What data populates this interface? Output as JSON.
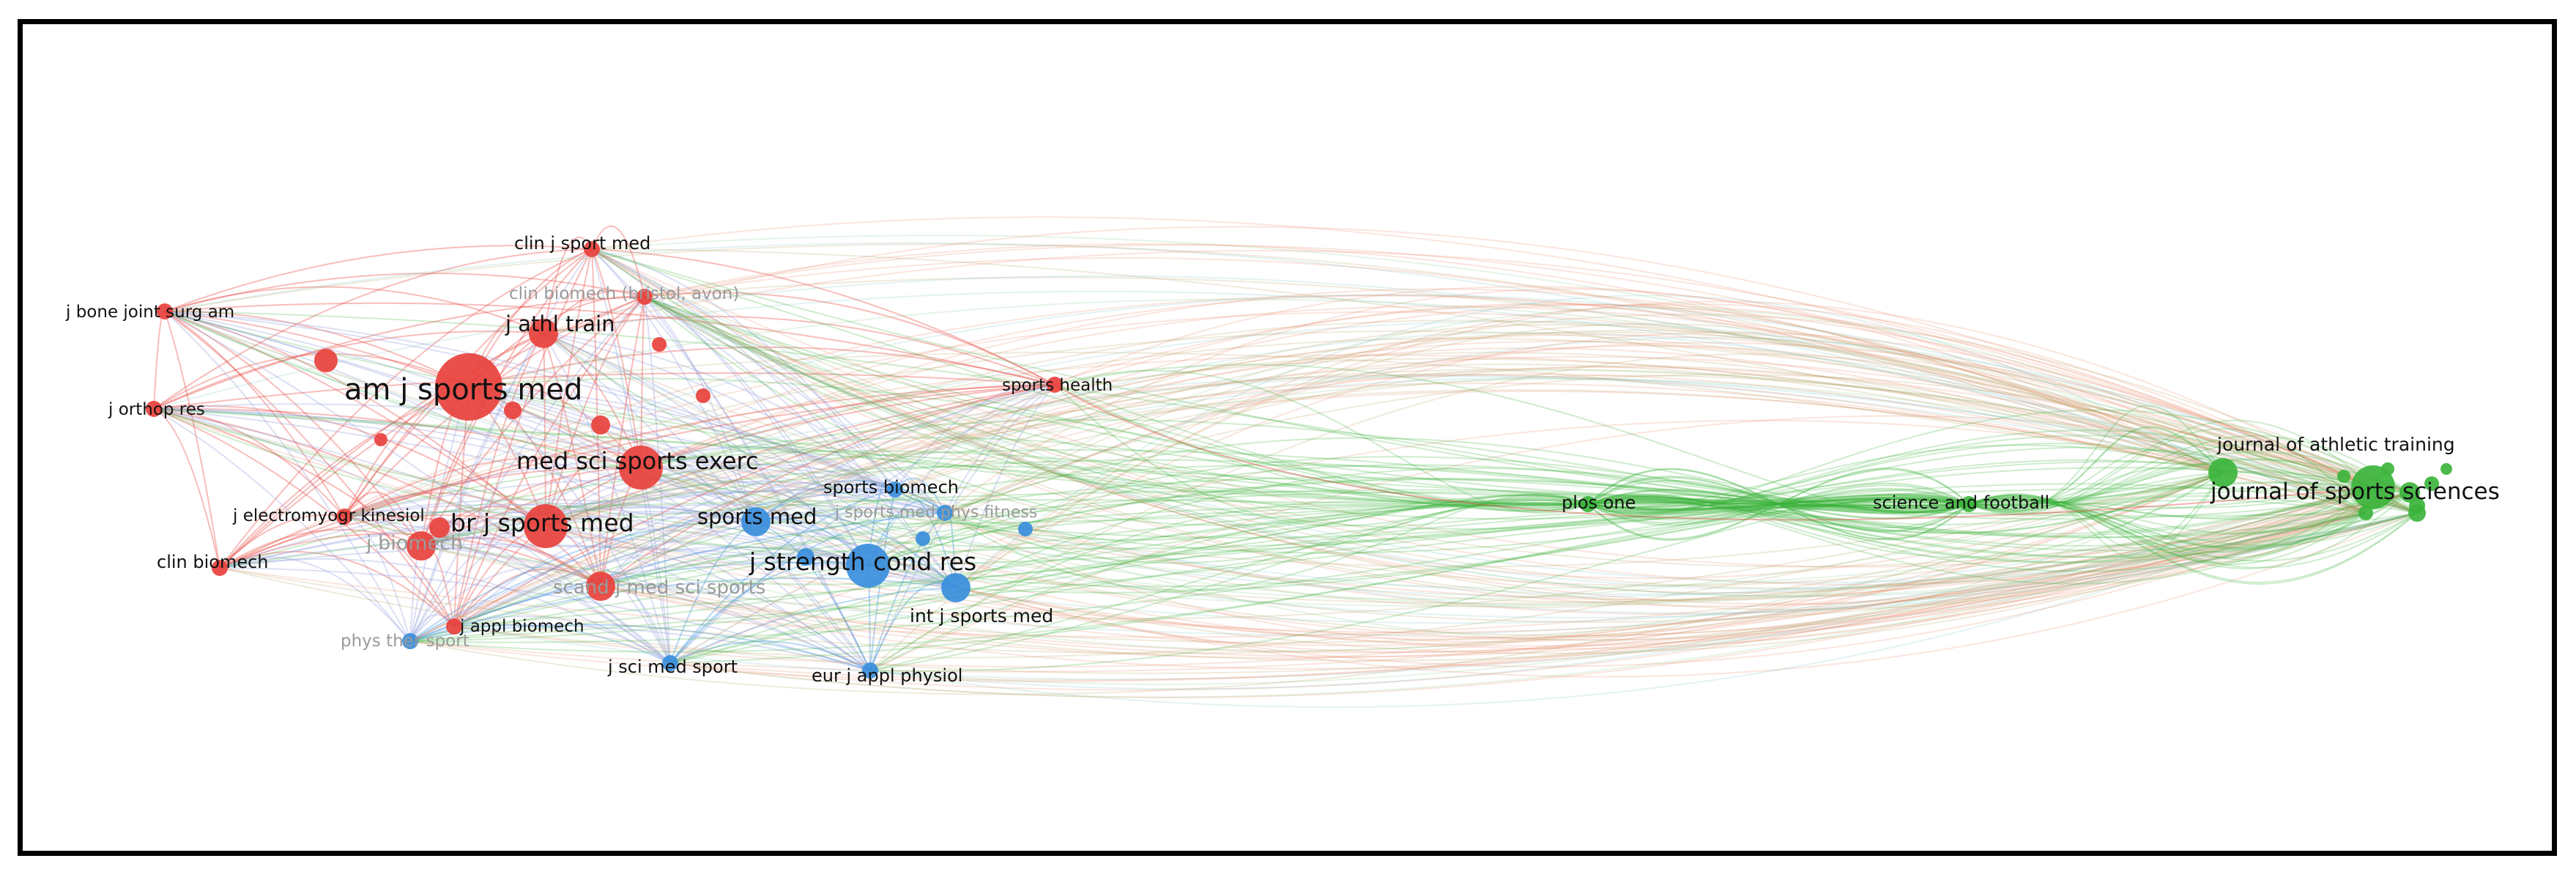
{
  "colors": {
    "cluster_red": "#e8413c",
    "cluster_blue": "#3a8edc",
    "cluster_green": "#3cb43c",
    "frame": "#000000",
    "background": "#ffffff"
  },
  "nodes": [
    {
      "id": "am_j_sports_med",
      "label": "am j sports med",
      "cluster": "red",
      "size": "xl",
      "faint": false
    },
    {
      "id": "br_j_sports_med",
      "label": "br j sports med",
      "cluster": "red",
      "size": "l",
      "faint": false
    },
    {
      "id": "med_sci_sports_exerc",
      "label": "med sci sports exerc",
      "cluster": "red",
      "size": "l",
      "faint": false
    },
    {
      "id": "j_athl_train",
      "label": "j athl train",
      "cluster": "red",
      "size": "m",
      "faint": false
    },
    {
      "id": "clin_j_sport_med",
      "label": "clin j sport med",
      "cluster": "red",
      "size": "s",
      "faint": false
    },
    {
      "id": "clin_biomech_bristol",
      "label": "clin biomech (bristol, avon)",
      "cluster": "red",
      "size": "s",
      "faint": true
    },
    {
      "id": "j_bone_joint_surg_am",
      "label": "j bone joint surg am",
      "cluster": "red",
      "size": "s",
      "faint": false
    },
    {
      "id": "j_orthop_res",
      "label": "j orthop res",
      "cluster": "red",
      "size": "s",
      "faint": false
    },
    {
      "id": "j_electromyogr_kinesiol",
      "label": "j electromyogr kinesiol",
      "cluster": "red",
      "size": "s",
      "faint": false
    },
    {
      "id": "j_biomech",
      "label": "j biomech",
      "cluster": "red",
      "size": "m",
      "faint": true
    },
    {
      "id": "clin_biomech",
      "label": "clin biomech",
      "cluster": "red",
      "size": "s",
      "faint": false
    },
    {
      "id": "j_appl_biomech",
      "label": "j appl biomech",
      "cluster": "red",
      "size": "s",
      "faint": false
    },
    {
      "id": "sports_health",
      "label": "sports health",
      "cluster": "red",
      "size": "s",
      "faint": false
    },
    {
      "id": "scand_j_med_sci_sports",
      "label": "scand j med sci sports",
      "cluster": "red",
      "size": "m",
      "faint": true
    },
    {
      "id": "sports_med",
      "label": "sports med",
      "cluster": "blue",
      "size": "m",
      "faint": false
    },
    {
      "id": "sports_biomech",
      "label": "sports biomech",
      "cluster": "blue",
      "size": "s",
      "faint": false
    },
    {
      "id": "j_sports_med_phys_fitness",
      "label": "j sports med phys fitness",
      "cluster": "blue",
      "size": "s",
      "faint": true
    },
    {
      "id": "j_strength_cond_res",
      "label": "j strength cond res",
      "cluster": "blue",
      "size": "l",
      "faint": false
    },
    {
      "id": "int_j_sports_med",
      "label": "int j sports med",
      "cluster": "blue",
      "size": "m",
      "faint": false
    },
    {
      "id": "phys_ther_sport",
      "label": "phys ther sport",
      "cluster": "blue",
      "size": "s",
      "faint": true
    },
    {
      "id": "j_sci_med_sport",
      "label": "j sci med sport",
      "cluster": "blue",
      "size": "s",
      "faint": false
    },
    {
      "id": "eur_j_appl_physiol",
      "label": "eur j appl physiol",
      "cluster": "blue",
      "size": "s",
      "faint": false
    },
    {
      "id": "plos_one",
      "label": "plos one",
      "cluster": "green",
      "size": "s",
      "faint": false
    },
    {
      "id": "science_and_football",
      "label": "science and football",
      "cluster": "green",
      "size": "s",
      "faint": false
    },
    {
      "id": "journal_of_athletic_training",
      "label": "journal of athletic training",
      "cluster": "green",
      "size": "m",
      "faint": false
    },
    {
      "id": "journal_of_sports_sciences",
      "label": "journal of sports sciences",
      "cluster": "green",
      "size": "l",
      "faint": false
    }
  ]
}
